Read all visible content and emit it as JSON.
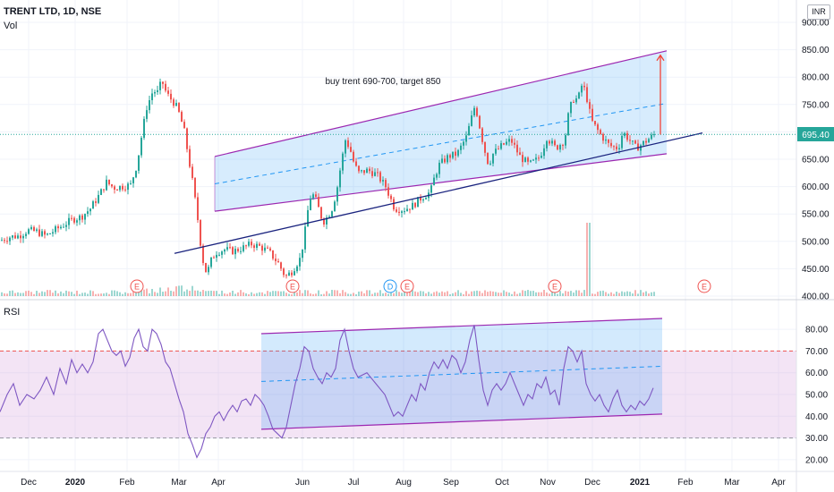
{
  "header": {
    "symbol": "TRENT LTD, 1D, NSE",
    "volume_label": "Vol",
    "currency_button": "INR",
    "rsi_label": "RSI"
  },
  "annotation": {
    "text": "buy trent 690-700, target 850"
  },
  "colors": {
    "up": "#26a69a",
    "down": "#ef5350",
    "channel_line": "#9c27b0",
    "channel_fill": "#2196f3",
    "trend_line": "#1a237e",
    "rsi_line": "#7e57c2",
    "rsi_band": "#ce93d8",
    "rsi_bounds": "#ef5350",
    "price_line": "#26a69a",
    "target_arrow": "#f44336"
  },
  "chart_data": [
    {
      "type": "candlestick",
      "title": "TRENT LTD, 1D, NSE",
      "x_ticks": [
        "Dec",
        "2020",
        "Feb",
        "Mar",
        "Apr",
        "Jun",
        "Jul",
        "Aug",
        "Sep",
        "Oct",
        "Nov",
        "Dec",
        "2021",
        "Feb",
        "Mar",
        "Apr"
      ],
      "y_ticks": [
        400,
        450,
        500,
        550,
        600,
        650,
        700,
        750,
        800,
        850,
        900
      ],
      "y_unit": "INR",
      "ylim": [
        395,
        905
      ],
      "last_price": "695.40",
      "price_path": [
        [
          0,
          502
        ],
        [
          10,
          508
        ],
        [
          20,
          510
        ],
        [
          30,
          520
        ],
        [
          40,
          518
        ],
        [
          50,
          510
        ],
        [
          60,
          520
        ],
        [
          70,
          530
        ],
        [
          80,
          540
        ],
        [
          90,
          545
        ],
        [
          100,
          560
        ],
        [
          110,
          585
        ],
        [
          118,
          608
        ],
        [
          126,
          598
        ],
        [
          135,
          600
        ],
        [
          145,
          603
        ],
        [
          152,
          640
        ],
        [
          158,
          700
        ],
        [
          163,
          745
        ],
        [
          170,
          775
        ],
        [
          175,
          772
        ],
        [
          180,
          793
        ],
        [
          185,
          770
        ],
        [
          190,
          760
        ],
        [
          195,
          750
        ],
        [
          200,
          730
        ],
        [
          205,
          700
        ],
        [
          210,
          650
        ],
        [
          215,
          600
        ],
        [
          220,
          540
        ],
        [
          225,
          470
        ],
        [
          230,
          440
        ],
        [
          235,
          465
        ],
        [
          240,
          480
        ],
        [
          250,
          485
        ],
        [
          260,
          482
        ],
        [
          270,
          488
        ],
        [
          280,
          495
        ],
        [
          290,
          490
        ],
        [
          300,
          480
        ],
        [
          310,
          460
        ],
        [
          318,
          435
        ],
        [
          325,
          445
        ],
        [
          335,
          470
        ],
        [
          340,
          520
        ],
        [
          345,
          580
        ],
        [
          350,
          585
        ],
        [
          355,
          560
        ],
        [
          360,
          535
        ],
        [
          365,
          545
        ],
        [
          370,
          560
        ],
        [
          375,
          590
        ],
        [
          380,
          640
        ],
        [
          385,
          685
        ],
        [
          390,
          670
        ],
        [
          395,
          640
        ],
        [
          400,
          625
        ],
        [
          410,
          630
        ],
        [
          420,
          622
        ],
        [
          430,
          600
        ],
        [
          435,
          580
        ],
        [
          440,
          560
        ],
        [
          450,
          558
        ],
        [
          460,
          565
        ],
        [
          470,
          580
        ],
        [
          480,
          590
        ],
        [
          485,
          620
        ],
        [
          490,
          640
        ],
        [
          500,
          655
        ],
        [
          510,
          660
        ],
        [
          520,
          690
        ],
        [
          525,
          720
        ],
        [
          530,
          750
        ],
        [
          535,
          710
        ],
        [
          540,
          670
        ],
        [
          545,
          640
        ],
        [
          550,
          660
        ],
        [
          560,
          675
        ],
        [
          570,
          685
        ],
        [
          575,
          670
        ],
        [
          580,
          655
        ],
        [
          590,
          640
        ],
        [
          600,
          650
        ],
        [
          605,
          665
        ],
        [
          610,
          690
        ],
        [
          620,
          670
        ],
        [
          630,
          685
        ],
        [
          635,
          740
        ],
        [
          640,
          760
        ],
        [
          645,
          760
        ],
        [
          650,
          790
        ],
        [
          655,
          760
        ],
        [
          660,
          720
        ],
        [
          670,
          695
        ],
        [
          680,
          675
        ],
        [
          690,
          670
        ],
        [
          695,
          700
        ],
        [
          700,
          690
        ],
        [
          705,
          680
        ],
        [
          710,
          670
        ],
        [
          720,
          682
        ],
        [
          730,
          695
        ]
      ],
      "channel": {
        "lower": [
          [
            240,
            555
          ],
          [
            745,
            660
          ]
        ],
        "upper": [
          [
            240,
            655
          ],
          [
            745,
            848
          ]
        ],
        "mid": [
          [
            240,
            605
          ],
          [
            745,
            752
          ]
        ]
      },
      "trendline": [
        [
          195,
          478
        ],
        [
          785,
          698
        ]
      ],
      "target_arrow": {
        "from": 695,
        "to": 840
      },
      "earnings_markers": [
        "E",
        "E",
        "D",
        "E",
        "E",
        "E"
      ],
      "volume": {
        "spike_value": "high volume day near Nov"
      }
    },
    {
      "type": "line",
      "title": "RSI",
      "y_ticks": [
        20,
        30,
        40,
        50,
        60,
        70,
        80
      ],
      "ylim": [
        15,
        85
      ],
      "overbought": 70,
      "oversold": 30,
      "rsi_path": [
        [
          0,
          42
        ],
        [
          8,
          50
        ],
        [
          15,
          55
        ],
        [
          22,
          45
        ],
        [
          30,
          50
        ],
        [
          38,
          48
        ],
        [
          45,
          52
        ],
        [
          52,
          58
        ],
        [
          60,
          50
        ],
        [
          67,
          62
        ],
        [
          74,
          55
        ],
        [
          80,
          66
        ],
        [
          86,
          60
        ],
        [
          92,
          64
        ],
        [
          98,
          60
        ],
        [
          104,
          65
        ],
        [
          110,
          78
        ],
        [
          115,
          80
        ],
        [
          120,
          75
        ],
        [
          125,
          70
        ],
        [
          130,
          68
        ],
        [
          135,
          70
        ],
        [
          140,
          63
        ],
        [
          145,
          67
        ],
        [
          150,
          76
        ],
        [
          155,
          80
        ],
        [
          160,
          72
        ],
        [
          165,
          70
        ],
        [
          170,
          80
        ],
        [
          175,
          78
        ],
        [
          180,
          73
        ],
        [
          185,
          65
        ],
        [
          190,
          62
        ],
        [
          195,
          55
        ],
        [
          200,
          48
        ],
        [
          205,
          42
        ],
        [
          210,
          32
        ],
        [
          215,
          27
        ],
        [
          220,
          21
        ],
        [
          225,
          25
        ],
        [
          230,
          32
        ],
        [
          235,
          35
        ],
        [
          240,
          40
        ],
        [
          245,
          42
        ],
        [
          250,
          38
        ],
        [
          255,
          42
        ],
        [
          260,
          45
        ],
        [
          265,
          42
        ],
        [
          270,
          47
        ],
        [
          275,
          48
        ],
        [
          280,
          45
        ],
        [
          285,
          50
        ],
        [
          290,
          48
        ],
        [
          295,
          45
        ],
        [
          300,
          40
        ],
        [
          305,
          34
        ],
        [
          310,
          32
        ],
        [
          315,
          30
        ],
        [
          320,
          35
        ],
        [
          325,
          45
        ],
        [
          330,
          55
        ],
        [
          335,
          62
        ],
        [
          340,
          72
        ],
        [
          345,
          70
        ],
        [
          350,
          62
        ],
        [
          355,
          58
        ],
        [
          360,
          55
        ],
        [
          365,
          60
        ],
        [
          370,
          58
        ],
        [
          375,
          62
        ],
        [
          380,
          75
        ],
        [
          385,
          80
        ],
        [
          390,
          70
        ],
        [
          395,
          62
        ],
        [
          400,
          58
        ],
        [
          410,
          60
        ],
        [
          420,
          55
        ],
        [
          430,
          50
        ],
        [
          440,
          40
        ],
        [
          445,
          42
        ],
        [
          450,
          40
        ],
        [
          455,
          45
        ],
        [
          460,
          50
        ],
        [
          465,
          47
        ],
        [
          470,
          55
        ],
        [
          475,
          52
        ],
        [
          480,
          60
        ],
        [
          485,
          65
        ],
        [
          490,
          62
        ],
        [
          495,
          66
        ],
        [
          500,
          62
        ],
        [
          505,
          68
        ],
        [
          510,
          66
        ],
        [
          515,
          60
        ],
        [
          520,
          65
        ],
        [
          525,
          75
        ],
        [
          530,
          82
        ],
        [
          535,
          66
        ],
        [
          540,
          52
        ],
        [
          545,
          45
        ],
        [
          550,
          52
        ],
        [
          555,
          55
        ],
        [
          560,
          52
        ],
        [
          565,
          55
        ],
        [
          570,
          60
        ],
        [
          575,
          55
        ],
        [
          580,
          50
        ],
        [
          585,
          45
        ],
        [
          590,
          50
        ],
        [
          595,
          48
        ],
        [
          600,
          55
        ],
        [
          605,
          53
        ],
        [
          610,
          58
        ],
        [
          615,
          50
        ],
        [
          620,
          52
        ],
        [
          625,
          45
        ],
        [
          630,
          62
        ],
        [
          635,
          72
        ],
        [
          640,
          70
        ],
        [
          645,
          65
        ],
        [
          650,
          70
        ],
        [
          655,
          55
        ],
        [
          660,
          50
        ],
        [
          665,
          47
        ],
        [
          670,
          50
        ],
        [
          675,
          45
        ],
        [
          680,
          42
        ],
        [
          685,
          48
        ],
        [
          690,
          52
        ],
        [
          695,
          45
        ],
        [
          700,
          42
        ],
        [
          705,
          45
        ],
        [
          710,
          43
        ],
        [
          715,
          47
        ],
        [
          720,
          45
        ],
        [
          725,
          48
        ],
        [
          730,
          53
        ]
      ],
      "channel": {
        "lower": [
          [
            292,
            34
          ],
          [
            740,
            41
          ]
        ],
        "upper": [
          [
            292,
            78
          ],
          [
            740,
            85
          ]
        ],
        "mid": [
          [
            292,
            56
          ],
          [
            740,
            63
          ]
        ]
      }
    }
  ]
}
